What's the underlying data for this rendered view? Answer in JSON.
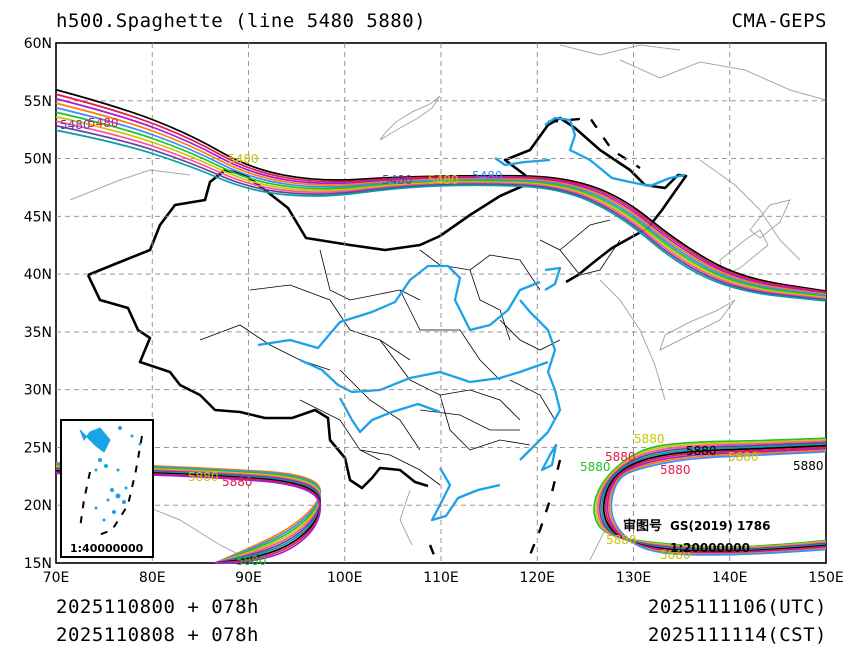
{
  "header": {
    "title": "h500.Spaghette (line 5480 5880)",
    "source": "CMA-GEPS"
  },
  "footer": {
    "init_utc": "2025110800 + 078h",
    "init_cst": "2025110808 + 078h",
    "valid_utc": "2025111106(UTC)",
    "valid_cst": "2025111114(CST)"
  },
  "map": {
    "lon_labels": [
      "70E",
      "80E",
      "90E",
      "100E",
      "110E",
      "120E",
      "130E",
      "140E",
      "150E"
    ],
    "lat_labels": [
      "15N",
      "20N",
      "25N",
      "30N",
      "35N",
      "40N",
      "45N",
      "50N",
      "55N",
      "60N"
    ],
    "contour_labels": {
      "c5480": "5480",
      "c5880": "5880"
    },
    "inset_scale": "1:40000000",
    "review_no": "审图号",
    "review_code": "GS(2019) 1786",
    "main_scale": "1:20000000",
    "colors": {
      "river": "#1aa3e8",
      "border": "#000000",
      "grid": "#888888",
      "members": [
        "#000000",
        "#e8174a",
        "#a01ed6",
        "#ff7f00",
        "#3a8cff",
        "#22c02a",
        "#c8c800",
        "#ff4fa0",
        "#6a3fa0",
        "#00a0a0"
      ]
    }
  }
}
